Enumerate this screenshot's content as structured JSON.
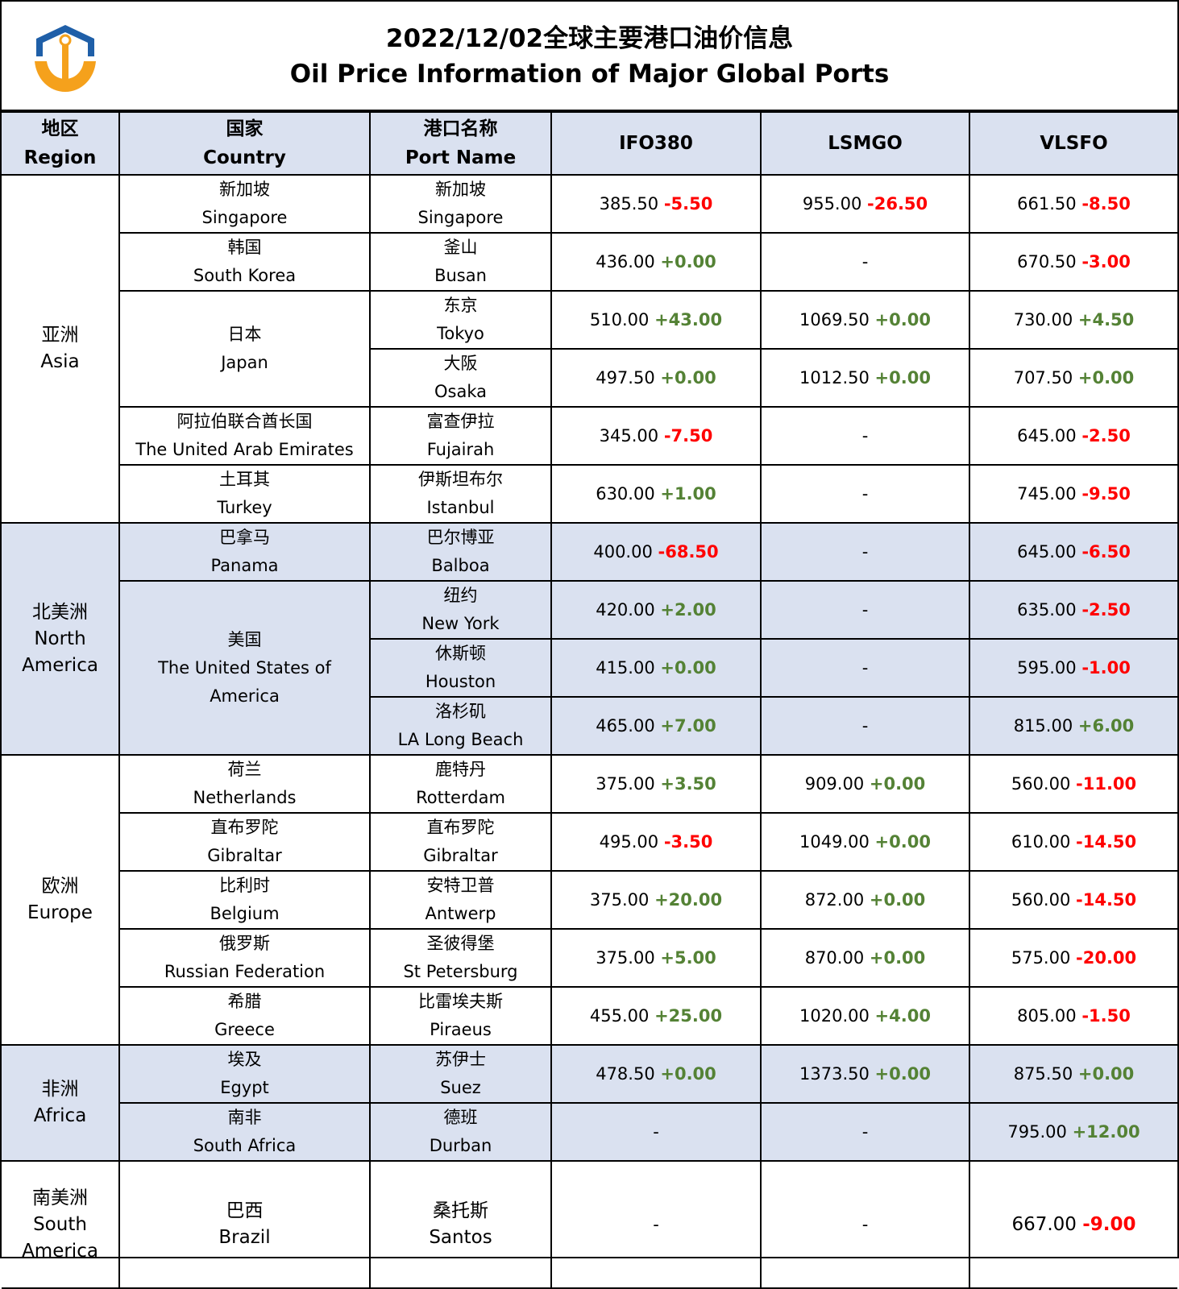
{
  "header": {
    "title_zh": "2022/12/02全球主要港口油价信息",
    "title_en": "Oil Price Information of Major Global Ports"
  },
  "columns": {
    "region": {
      "zh": "地区",
      "en": "Region"
    },
    "country": {
      "zh": "国家",
      "en": "Country"
    },
    "port": {
      "zh": "港口名称",
      "en": "Port Name"
    },
    "ifo380": "IFO380",
    "lsmgo": "LSMGO",
    "vlsfo": "VLSFO"
  },
  "regions": {
    "asia": {
      "zh": "亚洲",
      "en": "Asia"
    },
    "north_america": {
      "zh": "北美洲",
      "en1": "North",
      "en2": "America"
    },
    "europe": {
      "zh": "欧洲",
      "en": "Europe"
    },
    "africa": {
      "zh": "非洲",
      "en": "Africa"
    },
    "south_america": {
      "zh": "南美洲",
      "en1": "South",
      "en2": "America"
    }
  },
  "countries": {
    "singapore": {
      "zh": "新加坡",
      "en": "Singapore"
    },
    "south_korea": {
      "zh": "韩国",
      "en": "South Korea"
    },
    "japan": {
      "zh": "日本",
      "en": "Japan"
    },
    "uae": {
      "zh": "阿拉伯联合酋长国",
      "en": "The United Arab Emirates"
    },
    "turkey": {
      "zh": "土耳其",
      "en": "Turkey"
    },
    "panama": {
      "zh": "巴拿马",
      "en": "Panama"
    },
    "usa": {
      "zh": "美国",
      "en1": "The United States of",
      "en2": "America"
    },
    "netherlands": {
      "zh": "荷兰",
      "en": "Netherlands"
    },
    "gibraltar": {
      "zh": "直布罗陀",
      "en": "Gibraltar"
    },
    "belgium": {
      "zh": "比利时",
      "en": "Belgium"
    },
    "russia": {
      "zh": "俄罗斯",
      "en": "Russian Federation"
    },
    "greece": {
      "zh": "希腊",
      "en": "Greece"
    },
    "egypt": {
      "zh": "埃及",
      "en": "Egypt"
    },
    "south_africa": {
      "zh": "南非",
      "en": "South Africa"
    },
    "brazil": {
      "zh": "巴西",
      "en": "Brazil"
    }
  },
  "ports": {
    "singapore": {
      "zh": "新加坡",
      "en": "Singapore",
      "ifo": "385.50",
      "ifo_chg": "-5.50",
      "lsmgo": "955.00",
      "lsmgo_chg": "-26.50",
      "vlsfo": "661.50",
      "vlsfo_chg": "-8.50"
    },
    "busan": {
      "zh": "釜山",
      "en": "Busan",
      "ifo": "436.00",
      "ifo_chg": "+0.00",
      "lsmgo": "-",
      "lsmgo_chg": "",
      "vlsfo": "670.50",
      "vlsfo_chg": "-3.00"
    },
    "tokyo": {
      "zh": "东京",
      "en": "Tokyo",
      "ifo": "510.00",
      "ifo_chg": "+43.00",
      "lsmgo": "1069.50",
      "lsmgo_chg": "+0.00",
      "vlsfo": "730.00",
      "vlsfo_chg": "+4.50"
    },
    "osaka": {
      "zh": "大阪",
      "en": "Osaka",
      "ifo": "497.50",
      "ifo_chg": "+0.00",
      "lsmgo": "1012.50",
      "lsmgo_chg": "+0.00",
      "vlsfo": "707.50",
      "vlsfo_chg": "+0.00"
    },
    "fujairah": {
      "zh": "富查伊拉",
      "en": "Fujairah",
      "ifo": "345.00",
      "ifo_chg": "-7.50",
      "lsmgo": "-",
      "lsmgo_chg": "",
      "vlsfo": "645.00",
      "vlsfo_chg": "-2.50"
    },
    "istanbul": {
      "zh": "伊斯坦布尔",
      "en": "Istanbul",
      "ifo": "630.00",
      "ifo_chg": "+1.00",
      "lsmgo": "-",
      "lsmgo_chg": "",
      "vlsfo": "745.00",
      "vlsfo_chg": "-9.50"
    },
    "balboa": {
      "zh": "巴尔博亚",
      "en": "Balboa",
      "ifo": "400.00",
      "ifo_chg": "-68.50",
      "lsmgo": "-",
      "lsmgo_chg": "",
      "vlsfo": "645.00",
      "vlsfo_chg": "-6.50"
    },
    "new_york": {
      "zh": "纽约",
      "en": "New York",
      "ifo": "420.00",
      "ifo_chg": "+2.00",
      "lsmgo": "-",
      "lsmgo_chg": "",
      "vlsfo": "635.00",
      "vlsfo_chg": "-2.50"
    },
    "houston": {
      "zh": "休斯顿",
      "en": "Houston",
      "ifo": "415.00",
      "ifo_chg": "+0.00",
      "lsmgo": "-",
      "lsmgo_chg": "",
      "vlsfo": "595.00",
      "vlsfo_chg": "-1.00"
    },
    "la_long_beach": {
      "zh": "洛杉矶",
      "en": "LA Long Beach",
      "ifo": "465.00",
      "ifo_chg": "+7.00",
      "lsmgo": "-",
      "lsmgo_chg": "",
      "vlsfo": "815.00",
      "vlsfo_chg": "+6.00"
    },
    "rotterdam": {
      "zh": "鹿特丹",
      "en": "Rotterdam",
      "ifo": "375.00",
      "ifo_chg": "+3.50",
      "lsmgo": "909.00",
      "lsmgo_chg": "+0.00",
      "vlsfo": "560.00",
      "vlsfo_chg": "-11.00"
    },
    "gibraltar": {
      "zh": "直布罗陀",
      "en": "Gibraltar",
      "ifo": "495.00",
      "ifo_chg": "-3.50",
      "lsmgo": "1049.00",
      "lsmgo_chg": "+0.00",
      "vlsfo": "610.00",
      "vlsfo_chg": "-14.50"
    },
    "antwerp": {
      "zh": "安特卫普",
      "en": "Antwerp",
      "ifo": "375.00",
      "ifo_chg": "+20.00",
      "lsmgo": "872.00",
      "lsmgo_chg": "+0.00",
      "vlsfo": "560.00",
      "vlsfo_chg": "-14.50"
    },
    "st_petersburg": {
      "zh": "圣彼得堡",
      "en": "St Petersburg",
      "ifo": "375.00",
      "ifo_chg": "+5.00",
      "lsmgo": "870.00",
      "lsmgo_chg": "+0.00",
      "vlsfo": "575.00",
      "vlsfo_chg": "-20.00"
    },
    "piraeus": {
      "zh": "比雷埃夫斯",
      "en": "Piraeus",
      "ifo": "455.00",
      "ifo_chg": "+25.00",
      "lsmgo": "1020.00",
      "lsmgo_chg": "+4.00",
      "vlsfo": "805.00",
      "vlsfo_chg": "-1.50"
    },
    "suez": {
      "zh": "苏伊士",
      "en": "Suez",
      "ifo": "478.50",
      "ifo_chg": "+0.00",
      "lsmgo": "1373.50",
      "lsmgo_chg": "+0.00",
      "vlsfo": "875.50",
      "vlsfo_chg": "+0.00"
    },
    "durban": {
      "zh": "德班",
      "en": "Durban",
      "ifo": "-",
      "ifo_chg": "",
      "lsmgo": "-",
      "lsmgo_chg": "",
      "vlsfo": "795.00",
      "vlsfo_chg": "+12.00"
    },
    "santos": {
      "zh": "桑托斯",
      "en": "Santos",
      "ifo": "-",
      "ifo_chg": "",
      "lsmgo": "-",
      "lsmgo_chg": "",
      "vlsfo": "667.00",
      "vlsfo_chg": "-9.00"
    }
  },
  "colors": {
    "header_bg": "#dae1f0",
    "shade_bg": "#dae1f0",
    "negative": "#ff0000",
    "positive": "#548235",
    "logo_blue": "#1f5fa8",
    "logo_orange": "#f5a11c"
  },
  "icons": {
    "logo": "anchor-shield-logo"
  }
}
